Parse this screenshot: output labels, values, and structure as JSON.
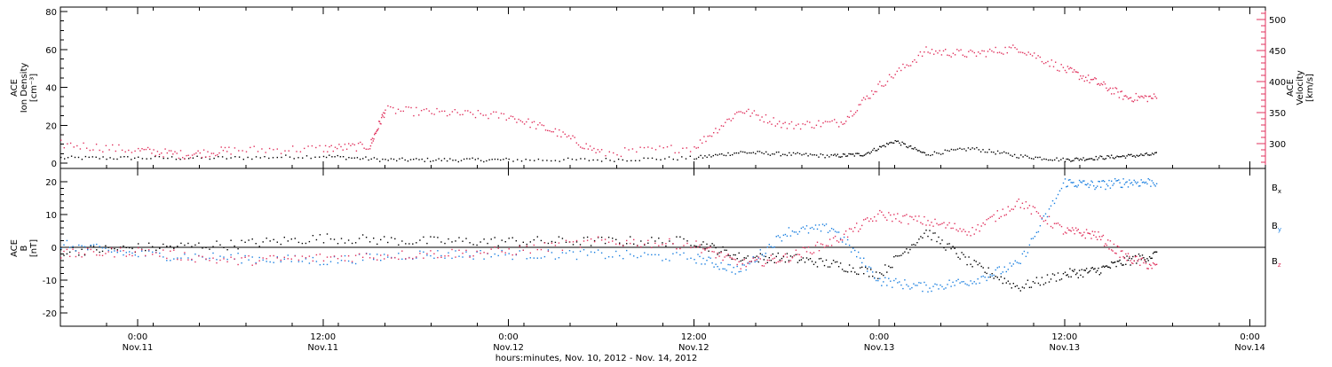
{
  "colors": {
    "black": "#000000",
    "pink": "#e0305c",
    "blue": "#1a7fe0"
  },
  "chart_data": [
    {
      "type": "scatter",
      "panel": "top",
      "ylabel_lines": [
        "ACE",
        "Ion Density",
        "[cm⁻³]"
      ],
      "ylabel_right_lines": [
        "ACE",
        "Velocity",
        "[km/s]"
      ],
      "ylim": [
        0,
        80
      ],
      "yticks": [
        0,
        20,
        40,
        60,
        80
      ],
      "ylim_right": [
        260,
        520
      ],
      "yticks_right": [
        300,
        350,
        400,
        450,
        500
      ],
      "series": [
        {
          "name": "",
          "axis": "left",
          "color": "#000000",
          "x": [
            "2012-11-10 19:00",
            "2012-11-11 00:00",
            "2012-11-11 06:00",
            "2012-11-11 12:00",
            "2012-11-11 16:00",
            "2012-11-11 20:00",
            "2012-11-12 00:00",
            "2012-11-12 06:00",
            "2012-11-12 12:00",
            "2012-11-12 15:00",
            "2012-11-12 18:00",
            "2012-11-12 21:00",
            "2012-11-12 23:00",
            "2012-11-13 01:00",
            "2012-11-13 03:00",
            "2012-11-13 06:00",
            "2012-11-13 09:00",
            "2012-11-13 12:00",
            "2012-11-13 14:00",
            "2012-11-13 16:00",
            "2012-11-13 18:00"
          ],
          "y": [
            3,
            3,
            3,
            4,
            2,
            2,
            2,
            2,
            3,
            6,
            5,
            4,
            5,
            12,
            5,
            8,
            4,
            2,
            3,
            4,
            5
          ]
        },
        {
          "name": "",
          "axis": "right",
          "color": "#e0305c",
          "x": [
            "2012-11-10 19:00",
            "2012-11-11 00:00",
            "2012-11-11 03:00",
            "2012-11-11 06:00",
            "2012-11-11 12:00",
            "2012-11-11 15:00",
            "2012-11-11 16:00",
            "2012-11-11 20:00",
            "2012-11-12 00:00",
            "2012-11-12 03:00",
            "2012-11-12 06:00",
            "2012-11-12 12:00",
            "2012-11-12 15:00",
            "2012-11-12 18:00",
            "2012-11-12 21:30",
            "2012-11-13 00:00",
            "2012-11-13 03:00",
            "2012-11-13 06:00",
            "2012-11-13 09:00",
            "2012-11-13 12:00",
            "2012-11-13 14:00",
            "2012-11-13 16:00",
            "2012-11-13 18:00"
          ],
          "y": [
            300,
            290,
            283,
            290,
            293,
            297,
            355,
            350,
            345,
            320,
            285,
            295,
            355,
            330,
            335,
            395,
            450,
            445,
            455,
            420,
            400,
            375,
            375
          ]
        }
      ]
    },
    {
      "type": "scatter",
      "panel": "bottom",
      "ylabel_lines": [
        "ACE",
        "B",
        "[nT]"
      ],
      "ylim": [
        -24,
        24
      ],
      "yticks": [
        -20,
        -10,
        0,
        10,
        20
      ],
      "series": [
        {
          "name": "Bx",
          "color": "#000000",
          "x": [
            "2012-11-10 19:00",
            "2012-11-11 00:00",
            "2012-11-11 06:00",
            "2012-11-11 12:00",
            "2012-11-11 18:00",
            "2012-11-12 00:00",
            "2012-11-12 06:00",
            "2012-11-12 12:00",
            "2012-11-12 15:00",
            "2012-11-12 18:00",
            "2012-11-12 21:00",
            "2012-11-13 00:00",
            "2012-11-13 03:00",
            "2012-11-13 06:00",
            "2012-11-13 09:00",
            "2012-11-13 12:00",
            "2012-11-13 14:00",
            "2012-11-13 16:00",
            "2012-11-13 18:00"
          ],
          "y": [
            -1,
            0,
            1,
            3,
            2,
            2,
            2,
            2,
            -3,
            -3,
            -5,
            -8,
            5,
            -5,
            -12,
            -8,
            -7,
            -4,
            -2
          ]
        },
        {
          "name": "By",
          "color": "#1a7fe0",
          "x": [
            "2012-11-10 19:00",
            "2012-11-11 00:00",
            "2012-11-11 06:00",
            "2012-11-11 12:00",
            "2012-11-11 18:00",
            "2012-11-12 00:00",
            "2012-11-12 06:00",
            "2012-11-12 12:00",
            "2012-11-12 15:00",
            "2012-11-12 18:00",
            "2012-11-12 21:00",
            "2012-11-13 00:00",
            "2012-11-13 03:00",
            "2012-11-13 06:00",
            "2012-11-13 09:00",
            "2012-11-13 12:00",
            "2012-11-13 14:00",
            "2012-11-13 16:00",
            "2012-11-13 18:00"
          ],
          "y": [
            1,
            -2,
            -3,
            -4,
            -2,
            -2,
            -2,
            -3,
            -7,
            5,
            6,
            -10,
            -12,
            -10,
            -5,
            20,
            19,
            20,
            20
          ]
        },
        {
          "name": "Bz",
          "color": "#e0305c",
          "x": [
            "2012-11-10 19:00",
            "2012-11-11 00:00",
            "2012-11-11 06:00",
            "2012-11-11 12:00",
            "2012-11-11 18:00",
            "2012-11-12 00:00",
            "2012-11-12 06:00",
            "2012-11-12 12:00",
            "2012-11-12 15:00",
            "2012-11-12 18:00",
            "2012-11-12 21:00",
            "2012-11-13 00:00",
            "2012-11-13 03:00",
            "2012-11-13 06:00",
            "2012-11-13 09:00",
            "2012-11-13 12:00",
            "2012-11-13 14:00",
            "2012-11-13 16:00",
            "2012-11-13 18:00"
          ],
          "y": [
            -2,
            -1,
            -4,
            -3,
            -2,
            -1,
            2,
            1,
            -5,
            -3,
            2,
            10,
            8,
            5,
            14,
            5,
            4,
            -3,
            -6
          ]
        }
      ],
      "zero_line": true
    }
  ],
  "x_axis": {
    "range": [
      "2012-11-10 19:00",
      "2012-11-14 01:00"
    ],
    "ticks": [
      {
        "x": "2012-11-11 00:00",
        "time": "0:00",
        "day": "Nov.11"
      },
      {
        "x": "2012-11-11 12:00",
        "time": "12:00",
        "day": "Nov.11"
      },
      {
        "x": "2012-11-12 00:00",
        "time": "0:00",
        "day": "Nov.12"
      },
      {
        "x": "2012-11-12 12:00",
        "time": "12:00",
        "day": "Nov.12"
      },
      {
        "x": "2012-11-13 00:00",
        "time": "0:00",
        "day": "Nov.13"
      },
      {
        "x": "2012-11-13 12:00",
        "time": "12:00",
        "day": "Nov.13"
      },
      {
        "x": "2012-11-14 00:00",
        "time": "0:00",
        "day": "Nov.14"
      }
    ],
    "label": "hours:minutes, Nov. 10, 2012 - Nov. 14, 2012"
  },
  "legend": [
    {
      "symbol": "B",
      "sub": "x",
      "color": "#000000"
    },
    {
      "symbol": "B",
      "sub": "y",
      "color": "#1a7fe0"
    },
    {
      "symbol": "B",
      "sub": "z",
      "color": "#e0305c"
    }
  ]
}
